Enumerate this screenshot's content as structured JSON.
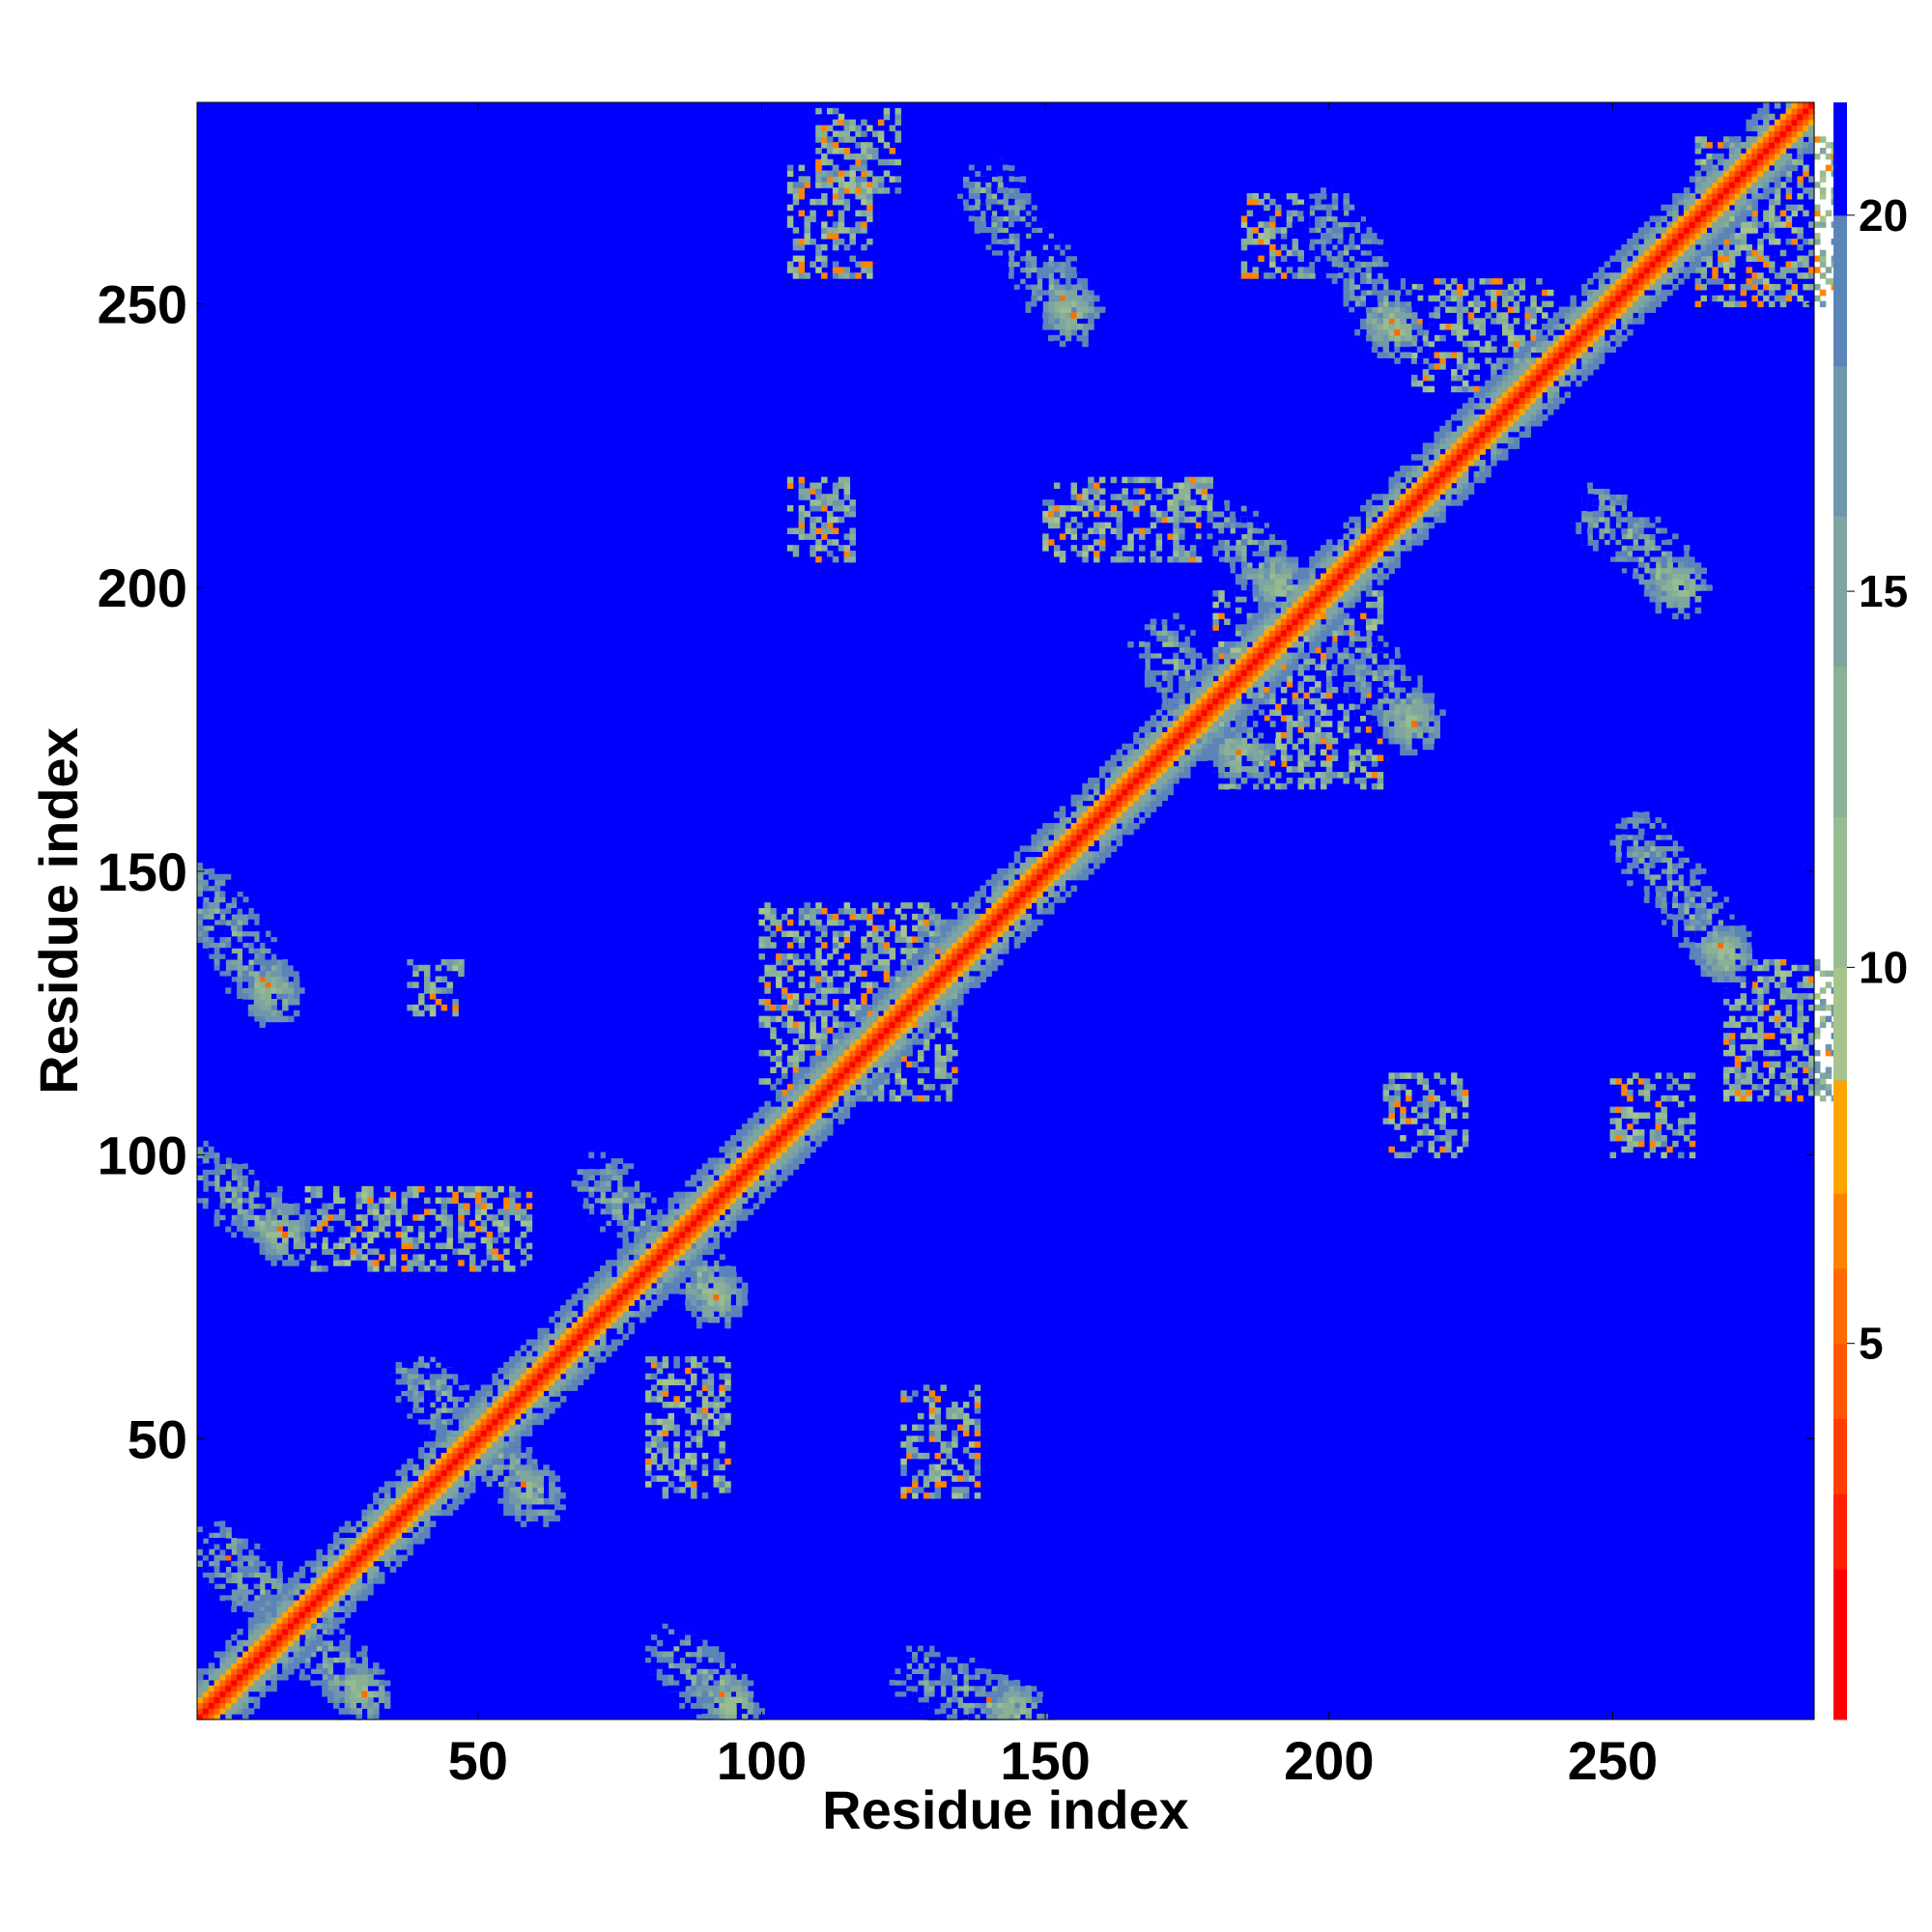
{
  "chart_data": {
    "type": "heatmap",
    "title": "",
    "xlabel": "Residue index",
    "ylabel": "Residue index",
    "xlim": [
      1,
      285
    ],
    "ylim": [
      1,
      285
    ],
    "xticks": [
      50,
      100,
      150,
      200,
      250
    ],
    "yticks": [
      50,
      100,
      150,
      200,
      250
    ],
    "colorbar": {
      "range": [
        0,
        21.5
      ],
      "ticks": [
        5,
        10,
        15,
        20
      ],
      "levels": [
        {
          "max": 2,
          "color": "#ff0000"
        },
        {
          "max": 3,
          "color": "#ff2000"
        },
        {
          "max": 4,
          "color": "#ff3d00"
        },
        {
          "max": 5,
          "color": "#ff5500"
        },
        {
          "max": 6,
          "color": "#ff6a00"
        },
        {
          "max": 7,
          "color": "#ff8300"
        },
        {
          "max": 8.5,
          "color": "#ffa500"
        },
        {
          "max": 10,
          "color": "#a7c48d"
        },
        {
          "max": 12,
          "color": "#98bc91"
        },
        {
          "max": 14,
          "color": "#8ab096"
        },
        {
          "max": 16,
          "color": "#7ea59f"
        },
        {
          "max": 18,
          "color": "#7096ad"
        },
        {
          "max": 20,
          "color": "#5b84b8"
        },
        {
          "max": 21.5,
          "color": "#0000ff"
        }
      ]
    },
    "background_color": "#0000ff",
    "main_diagonal": {
      "from": 1,
      "to": 285,
      "value": 1
    },
    "contact_bands": [
      {
        "i": [
          5,
          30
        ],
        "j": [
          30,
          5
        ]
      },
      {
        "i": [
          40,
          60
        ],
        "j": [
          60,
          40
        ]
      },
      {
        "i": [
          72,
          92
        ],
        "j": [
          95,
          75
        ]
      },
      {
        "i": [
          1,
          14
        ],
        "j": [
          146,
          128
        ]
      },
      {
        "i": [
          1,
          16
        ],
        "j": [
          97,
          86
        ]
      },
      {
        "i": [
          85,
          95
        ],
        "j": [
          12,
          3
        ]
      },
      {
        "i": [
          128,
          145
        ],
        "j": [
          8,
          2
        ]
      },
      {
        "i": [
          140,
          155
        ],
        "j": [
          270,
          248
        ]
      },
      {
        "i": [
          170,
          185
        ],
        "j": [
          190,
          170
        ]
      },
      {
        "i": [
          183,
          192
        ],
        "j": [
          210,
          200
        ]
      },
      {
        "i": [
          200,
          212
        ],
        "j": [
          265,
          245
        ]
      },
      {
        "i": [
          255,
          270
        ],
        "j": [
          155,
          135
        ]
      },
      {
        "i": [
          248,
          262
        ],
        "j": [
          213,
          200
        ]
      },
      {
        "i": [
          205,
          215
        ],
        "j": [
          188,
          176
        ]
      }
    ],
    "contact_clusters": [
      {
        "x": 38,
        "y": 125,
        "w": 10,
        "h": 10
      },
      {
        "x": 20,
        "y": 80,
        "w": 40,
        "h": 15
      },
      {
        "x": 100,
        "y": 110,
        "w": 35,
        "h": 35
      },
      {
        "x": 125,
        "y": 40,
        "w": 14,
        "h": 20
      },
      {
        "x": 80,
        "y": 40,
        "w": 15,
        "h": 25
      },
      {
        "x": 105,
        "y": 205,
        "w": 12,
        "h": 15
      },
      {
        "x": 105,
        "y": 255,
        "w": 15,
        "h": 20
      },
      {
        "x": 110,
        "y": 270,
        "w": 15,
        "h": 15
      },
      {
        "x": 180,
        "y": 165,
        "w": 30,
        "h": 35
      },
      {
        "x": 215,
        "y": 235,
        "w": 25,
        "h": 20
      },
      {
        "x": 270,
        "y": 110,
        "w": 20,
        "h": 25
      },
      {
        "x": 210,
        "y": 100,
        "w": 15,
        "h": 15
      },
      {
        "x": 250,
        "y": 100,
        "w": 15,
        "h": 15
      },
      {
        "x": 265,
        "y": 250,
        "w": 25,
        "h": 30
      },
      {
        "x": 185,
        "y": 255,
        "w": 15,
        "h": 15
      },
      {
        "x": 150,
        "y": 205,
        "w": 30,
        "h": 15
      }
    ]
  }
}
